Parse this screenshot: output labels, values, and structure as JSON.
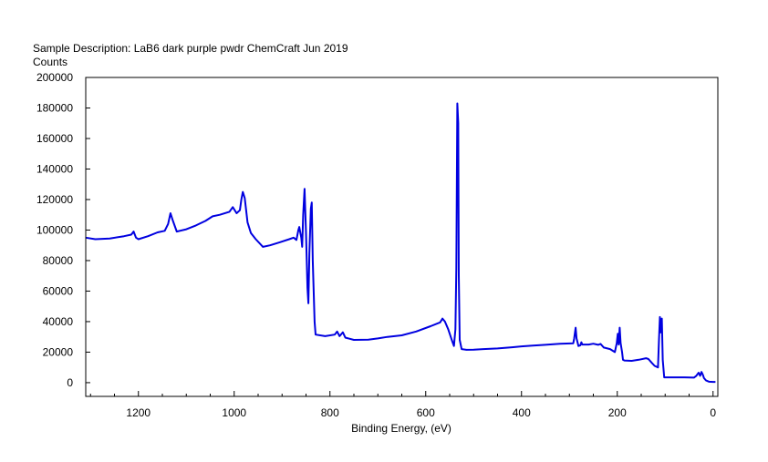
{
  "chart_data": {
    "type": "line",
    "title": "Sample Description:  LaB6 dark purple pwdr ChemCraft Jun 2019",
    "ylabel": "Counts",
    "xlabel": "Binding Energy, (eV)",
    "xlim": [
      1310,
      -10
    ],
    "ylim": [
      -9000,
      200000
    ],
    "x_ticks": [
      1200,
      1000,
      800,
      600,
      400,
      200,
      0
    ],
    "y_ticks": [
      200000,
      180000,
      160000,
      140000,
      120000,
      100000,
      80000,
      60000,
      40000,
      20000,
      0
    ],
    "x_tick_labels": [
      "1200",
      "1000",
      "800",
      "600",
      "400",
      "200",
      "0"
    ],
    "y_tick_labels": [
      "200000",
      "180000",
      "160000",
      "140000",
      "120000",
      "100000",
      "80000",
      "60000",
      "40000",
      "20000",
      "0"
    ],
    "grid": false,
    "series": [
      {
        "color": "#0000e0",
        "points": [
          [
            1310,
            95000
          ],
          [
            1290,
            94000
          ],
          [
            1260,
            94500
          ],
          [
            1230,
            96000
          ],
          [
            1215,
            97000
          ],
          [
            1210,
            99000
          ],
          [
            1205,
            95000
          ],
          [
            1200,
            94000
          ],
          [
            1180,
            96000
          ],
          [
            1160,
            98500
          ],
          [
            1145,
            99500
          ],
          [
            1138,
            104000
          ],
          [
            1133,
            111000
          ],
          [
            1128,
            106000
          ],
          [
            1120,
            99000
          ],
          [
            1100,
            100500
          ],
          [
            1080,
            103000
          ],
          [
            1060,
            106000
          ],
          [
            1045,
            109000
          ],
          [
            1030,
            110000
          ],
          [
            1010,
            112000
          ],
          [
            1003,
            115000
          ],
          [
            995,
            111000
          ],
          [
            988,
            113000
          ],
          [
            985,
            120000
          ],
          [
            982,
            125000
          ],
          [
            978,
            121000
          ],
          [
            972,
            105000
          ],
          [
            965,
            98000
          ],
          [
            955,
            94000
          ],
          [
            940,
            89000
          ],
          [
            925,
            90000
          ],
          [
            905,
            92000
          ],
          [
            885,
            94000
          ],
          [
            876,
            95000
          ],
          [
            870,
            93500
          ],
          [
            866,
            100000
          ],
          [
            864,
            102000
          ],
          [
            860,
            95000
          ],
          [
            858,
            89000
          ],
          [
            856,
            110000
          ],
          [
            853,
            127000
          ],
          [
            850,
            98000
          ],
          [
            847,
            62000
          ],
          [
            845,
            52000
          ],
          [
            843,
            85000
          ],
          [
            840,
            114000
          ],
          [
            838,
            118000
          ],
          [
            836,
            80000
          ],
          [
            834,
            60000
          ],
          [
            832,
            40000
          ],
          [
            830,
            31500
          ],
          [
            810,
            30500
          ],
          [
            790,
            31500
          ],
          [
            785,
            33500
          ],
          [
            780,
            30500
          ],
          [
            773,
            33000
          ],
          [
            768,
            29500
          ],
          [
            750,
            28000
          ],
          [
            720,
            28200
          ],
          [
            700,
            29000
          ],
          [
            680,
            30000
          ],
          [
            650,
            31000
          ],
          [
            620,
            33500
          ],
          [
            590,
            37000
          ],
          [
            570,
            39500
          ],
          [
            565,
            42000
          ],
          [
            560,
            40000
          ],
          [
            553,
            35000
          ],
          [
            545,
            27500
          ],
          [
            541,
            24000
          ],
          [
            538,
            35000
          ],
          [
            536,
            75000
          ],
          [
            534,
            183000
          ],
          [
            532,
            170000
          ],
          [
            531,
            70000
          ],
          [
            529,
            28000
          ],
          [
            525,
            22000
          ],
          [
            515,
            21500
          ],
          [
            500,
            21600
          ],
          [
            480,
            22000
          ],
          [
            450,
            22400
          ],
          [
            420,
            23200
          ],
          [
            400,
            23800
          ],
          [
            380,
            24200
          ],
          [
            350,
            24800
          ],
          [
            320,
            25500
          ],
          [
            292,
            25800
          ],
          [
            290,
            29000
          ],
          [
            287,
            36000
          ],
          [
            285,
            29000
          ],
          [
            281,
            24000
          ],
          [
            277,
            24500
          ],
          [
            275,
            26500
          ],
          [
            273,
            25000
          ],
          [
            260,
            25000
          ],
          [
            250,
            25500
          ],
          [
            240,
            24800
          ],
          [
            235,
            25400
          ],
          [
            228,
            23000
          ],
          [
            215,
            22000
          ],
          [
            205,
            20000
          ],
          [
            201,
            26000
          ],
          [
            199,
            32000
          ],
          [
            197,
            25000
          ],
          [
            195,
            36000
          ],
          [
            193,
            26000
          ],
          [
            190,
            20000
          ],
          [
            188,
            15000
          ],
          [
            185,
            14500
          ],
          [
            170,
            14300
          ],
          [
            155,
            15000
          ],
          [
            140,
            16000
          ],
          [
            135,
            15500
          ],
          [
            128,
            13000
          ],
          [
            122,
            11000
          ],
          [
            115,
            10000
          ],
          [
            113,
            27000
          ],
          [
            111,
            43000
          ],
          [
            109,
            33000
          ],
          [
            107,
            42000
          ],
          [
            105,
            15000
          ],
          [
            102,
            3500
          ],
          [
            95,
            3500
          ],
          [
            60,
            3500
          ],
          [
            40,
            3300
          ],
          [
            35,
            4500
          ],
          [
            30,
            6500
          ],
          [
            27,
            4500
          ],
          [
            24,
            7000
          ],
          [
            21,
            5000
          ],
          [
            19,
            3000
          ],
          [
            15,
            1500
          ],
          [
            8,
            600
          ],
          [
            0,
            500
          ],
          [
            -5,
            500
          ]
        ]
      }
    ]
  }
}
